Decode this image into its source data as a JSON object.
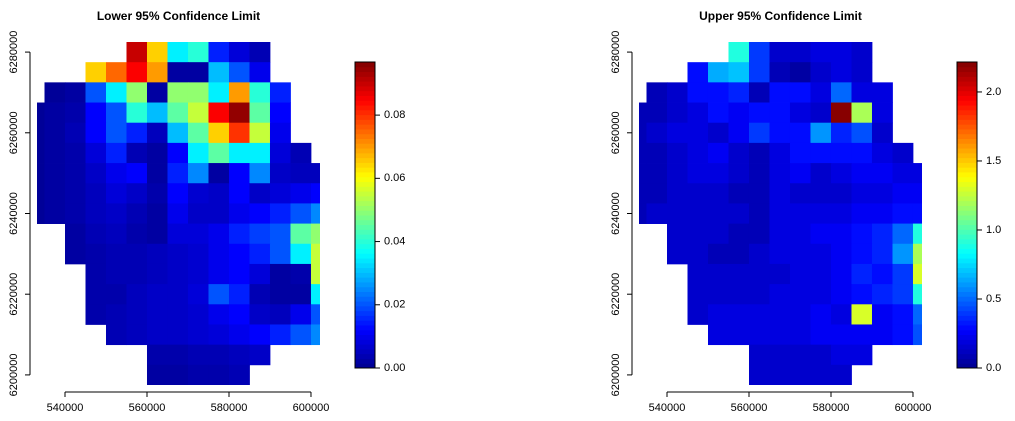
{
  "chart_data": [
    {
      "type": "heatmap",
      "title": "Lower 95% Confidence Limit",
      "x": [
        532500,
        537500,
        542500,
        547500,
        552500,
        557500,
        562500,
        567500,
        572500,
        577500,
        582500,
        587500,
        592500,
        597500,
        602500
      ],
      "y": [
        6280000,
        6275000,
        6270000,
        6265000,
        6260000,
        6255000,
        6250000,
        6245000,
        6240000,
        6235000,
        6230000,
        6225000,
        6220000,
        6215000,
        6210000,
        6205000,
        6200000
      ],
      "z": [
        [
          null,
          null,
          null,
          null,
          null,
          0.09,
          0.065,
          0.035,
          0.04,
          0.015,
          0.008,
          0.004,
          null,
          null,
          null
        ],
        [
          null,
          null,
          null,
          0.065,
          0.075,
          0.085,
          0.07,
          0.002,
          0.002,
          0.03,
          0.02,
          0.01,
          null,
          null,
          null
        ],
        [
          null,
          0.001,
          0.002,
          0.02,
          0.035,
          0.05,
          0.002,
          0.05,
          0.05,
          0.035,
          0.07,
          0.04,
          0.015,
          null,
          null
        ],
        [
          0.001,
          0.002,
          0.003,
          0.012,
          0.02,
          0.04,
          0.03,
          0.045,
          0.055,
          0.085,
          0.095,
          0.045,
          0.012,
          null,
          null
        ],
        [
          0.001,
          0.002,
          0.004,
          0.012,
          0.02,
          0.015,
          0.005,
          0.03,
          0.045,
          0.065,
          0.08,
          0.055,
          0.01,
          null,
          null
        ],
        [
          0.001,
          0.002,
          0.003,
          0.008,
          0.015,
          0.004,
          0.002,
          0.012,
          0.035,
          0.045,
          0.035,
          0.035,
          0.008,
          0.004,
          null
        ],
        [
          0.001,
          0.002,
          0.003,
          0.006,
          0.01,
          0.012,
          0.002,
          0.015,
          0.025,
          0.002,
          0.012,
          0.025,
          0.006,
          0.005,
          0.005
        ],
        [
          0.001,
          0.002,
          0.003,
          0.005,
          0.008,
          0.006,
          0.003,
          0.012,
          0.007,
          0.006,
          0.012,
          0.006,
          0.008,
          0.01,
          0.012
        ],
        [
          0.001,
          0.002,
          0.003,
          0.005,
          0.006,
          0.004,
          0.002,
          0.01,
          0.006,
          0.006,
          0.01,
          0.012,
          0.015,
          0.02,
          0.025
        ],
        [
          null,
          null,
          0.002,
          0.004,
          0.005,
          0.003,
          0.002,
          0.008,
          0.008,
          0.01,
          0.015,
          0.018,
          0.02,
          0.045,
          0.05
        ],
        [
          null,
          null,
          0.002,
          0.003,
          0.004,
          0.004,
          0.005,
          0.006,
          0.007,
          0.01,
          0.012,
          0.015,
          0.02,
          0.035,
          0.055
        ],
        [
          null,
          null,
          null,
          0.003,
          0.004,
          0.004,
          0.005,
          0.006,
          0.007,
          0.01,
          0.012,
          0.008,
          0.002,
          0.003,
          0.055
        ],
        [
          null,
          null,
          null,
          0.003,
          0.003,
          0.005,
          0.006,
          0.006,
          0.008,
          0.02,
          0.015,
          0.004,
          0.002,
          0.002,
          0.035
        ],
        [
          null,
          null,
          null,
          0.003,
          0.004,
          0.005,
          0.006,
          0.006,
          0.007,
          0.01,
          0.012,
          0.006,
          0.005,
          0.01,
          0.02
        ],
        [
          null,
          null,
          null,
          null,
          0.004,
          0.005,
          0.006,
          0.006,
          0.007,
          0.008,
          0.01,
          0.012,
          0.015,
          0.02,
          0.025
        ],
        [
          null,
          null,
          null,
          null,
          null,
          null,
          0.003,
          0.003,
          0.004,
          0.004,
          0.005,
          0.006,
          null,
          null,
          null
        ],
        [
          null,
          null,
          null,
          null,
          null,
          null,
          0.002,
          0.002,
          0.003,
          0.003,
          0.004,
          null,
          null,
          null,
          null
        ]
      ],
      "xlim": [
        533170,
        602200
      ],
      "ylim": [
        6197500,
        6282500
      ],
      "xticks": [
        540000,
        560000,
        580000,
        600000
      ],
      "yticks": [
        6200000,
        6220000,
        6240000,
        6260000,
        6280000
      ],
      "zlim": [
        0,
        0.0968
      ],
      "zticks": [
        {
          "value": 0,
          "label": "0.00"
        },
        {
          "value": 0.02,
          "label": "0.02"
        },
        {
          "value": 0.04,
          "label": "0.04"
        },
        {
          "value": 0.06,
          "label": "0.06"
        },
        {
          "value": 0.08,
          "label": "0.08"
        }
      ],
      "colors": [
        "#00008F",
        "#0000FF",
        "#0080FF",
        "#00FFFF",
        "#80FF80",
        "#FFFF00",
        "#FF8000",
        "#FF0000",
        "#800000"
      ]
    },
    {
      "type": "heatmap",
      "title": "Upper 95% Confidence Limit",
      "x": [
        532500,
        537500,
        542500,
        547500,
        552500,
        557500,
        562500,
        567500,
        572500,
        577500,
        582500,
        587500,
        592500,
        597500,
        602500
      ],
      "y": [
        6280000,
        6275000,
        6270000,
        6265000,
        6260000,
        6255000,
        6250000,
        6245000,
        6240000,
        6235000,
        6230000,
        6225000,
        6220000,
        6215000,
        6210000,
        6205000,
        6200000
      ],
      "z": [
        [
          null,
          null,
          null,
          null,
          null,
          0.9,
          0.4,
          0.15,
          0.15,
          0.2,
          0.2,
          0.15,
          null,
          null,
          null
        ],
        [
          null,
          null,
          null,
          0.3,
          0.65,
          0.7,
          0.4,
          0.1,
          0.05,
          0.15,
          0.2,
          0.15,
          null,
          null,
          null
        ],
        [
          null,
          0.1,
          0.15,
          0.3,
          0.3,
          0.35,
          0.1,
          0.3,
          0.3,
          0.2,
          0.5,
          0.2,
          0.2,
          null,
          null
        ],
        [
          0.1,
          0.1,
          0.15,
          0.2,
          0.3,
          0.25,
          0.3,
          0.3,
          0.2,
          0.15,
          2.2,
          1.2,
          0.2,
          null,
          null
        ],
        [
          0.1,
          0.15,
          0.2,
          0.2,
          0.15,
          0.25,
          0.4,
          0.3,
          0.3,
          0.6,
          0.35,
          0.45,
          0.15,
          null,
          null
        ],
        [
          0.1,
          0.1,
          0.15,
          0.2,
          0.25,
          0.15,
          0.1,
          0.2,
          0.3,
          0.3,
          0.3,
          0.3,
          0.2,
          0.15,
          null
        ],
        [
          0.1,
          0.1,
          0.15,
          0.2,
          0.2,
          0.15,
          0.1,
          0.2,
          0.25,
          0.15,
          0.2,
          0.25,
          0.25,
          0.2,
          0.2
        ],
        [
          0.1,
          0.1,
          0.15,
          0.15,
          0.15,
          0.1,
          0.1,
          0.2,
          0.15,
          0.15,
          0.15,
          0.2,
          0.2,
          0.25,
          0.25
        ],
        [
          0.1,
          0.15,
          0.15,
          0.15,
          0.15,
          0.15,
          0.1,
          0.2,
          0.2,
          0.2,
          0.2,
          0.25,
          0.25,
          0.3,
          0.3
        ],
        [
          null,
          null,
          0.15,
          0.15,
          0.15,
          0.1,
          0.1,
          0.2,
          0.2,
          0.25,
          0.25,
          0.3,
          0.35,
          0.5,
          0.9
        ],
        [
          null,
          null,
          0.15,
          0.15,
          0.1,
          0.1,
          0.15,
          0.2,
          0.2,
          0.2,
          0.25,
          0.3,
          0.35,
          0.6,
          1.2
        ],
        [
          null,
          null,
          null,
          0.15,
          0.15,
          0.15,
          0.15,
          0.15,
          0.2,
          0.2,
          0.25,
          0.35,
          0.3,
          0.4,
          1.3
        ],
        [
          null,
          null,
          null,
          0.15,
          0.15,
          0.15,
          0.15,
          0.2,
          0.2,
          0.2,
          0.25,
          0.3,
          0.35,
          0.4,
          0.9
        ],
        [
          null,
          null,
          null,
          0.15,
          0.2,
          0.2,
          0.2,
          0.2,
          0.2,
          0.25,
          0.2,
          1.3,
          0.25,
          0.3,
          0.5
        ],
        [
          null,
          null,
          null,
          null,
          0.2,
          0.2,
          0.2,
          0.2,
          0.2,
          0.25,
          0.25,
          0.25,
          0.25,
          0.3,
          0.45
        ],
        [
          null,
          null,
          null,
          null,
          null,
          null,
          0.15,
          0.15,
          0.15,
          0.15,
          0.2,
          0.2,
          null,
          null,
          null
        ],
        [
          null,
          null,
          null,
          null,
          null,
          null,
          0.15,
          0.15,
          0.15,
          0.15,
          0.15,
          null,
          null,
          null,
          null
        ]
      ],
      "xlim": [
        533170,
        602200
      ],
      "ylim": [
        6197500,
        6282500
      ],
      "xticks": [
        540000,
        560000,
        580000,
        600000
      ],
      "yticks": [
        6200000,
        6220000,
        6240000,
        6260000,
        6280000
      ],
      "zlim": [
        0,
        2.217
      ],
      "zticks": [
        {
          "value": 0,
          "label": "0.0"
        },
        {
          "value": 0.5,
          "label": "0.5"
        },
        {
          "value": 1,
          "label": "1.0"
        },
        {
          "value": 1.5,
          "label": "1.5"
        },
        {
          "value": 2,
          "label": "2.0"
        }
      ],
      "colors": [
        "#00008F",
        "#0000FF",
        "#0080FF",
        "#00FFFF",
        "#80FF80",
        "#FFFF00",
        "#FF8000",
        "#FF0000",
        "#800000"
      ]
    }
  ]
}
